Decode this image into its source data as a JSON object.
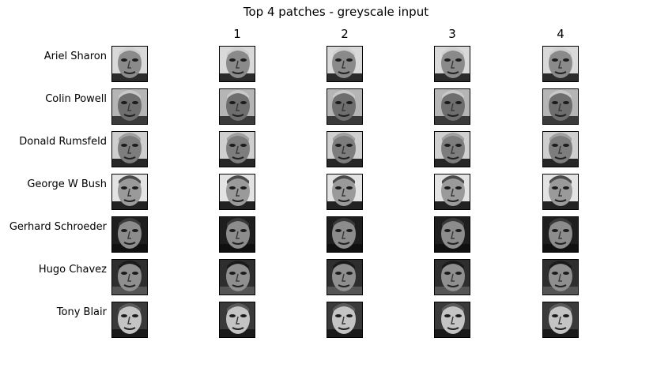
{
  "title": "Top 4 patches - greyscale input",
  "columns": [
    "1",
    "2",
    "3",
    "4"
  ],
  "rows": [
    {
      "label": "Ariel Sharon",
      "bg": "#d9d9d9",
      "face": "#8a8a8a",
      "hair": "#cfcfcf",
      "shadow": "#2b2b2b"
    },
    {
      "label": "Colin Powell",
      "bg": "#b5b5b5",
      "face": "#6e6e6e",
      "hair": "#c8c8c8",
      "shadow": "#3a3a3a"
    },
    {
      "label": "Donald Rumsfeld",
      "bg": "#cfcfcf",
      "face": "#7d7d7d",
      "hair": "#a0a0a0",
      "shadow": "#262626"
    },
    {
      "label": "George W Bush",
      "bg": "#e3e3e3",
      "face": "#9a9a9a",
      "hair": "#4a4a4a",
      "shadow": "#222222"
    },
    {
      "label": "Gerhard Schroeder",
      "bg": "#1e1e1e",
      "face": "#8c8c8c",
      "hair": "#3a3a3a",
      "shadow": "#101010"
    },
    {
      "label": "Hugo Chavez",
      "bg": "#2e2e2e",
      "face": "#8f8f8f",
      "hair": "#1a1a1a",
      "shadow": "#555555"
    },
    {
      "label": "Tony Blair",
      "bg": "#3a3a3a",
      "face": "#c4c4c4",
      "hair": "#5a5a5a",
      "shadow": "#1a1a1a"
    }
  ]
}
